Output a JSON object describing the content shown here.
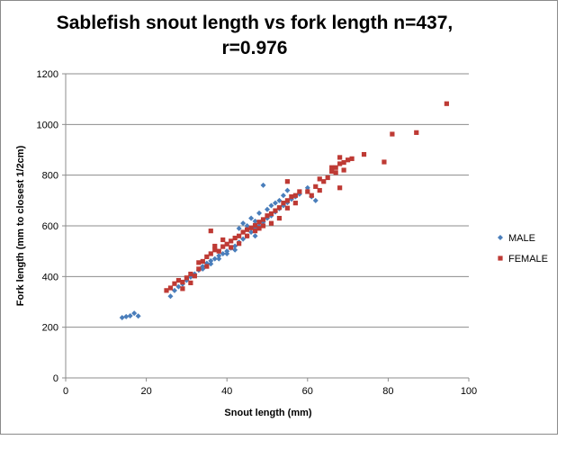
{
  "chart_data": {
    "type": "scatter",
    "title_line1": "Sablefish snout length vs fork length n=437,",
    "title_line2": "r=0.976",
    "xlabel": "Snout length (mm)",
    "ylabel": "Fork length  (mm to closest  1/2cm)",
    "xlim": [
      0,
      100
    ],
    "ylim": [
      0,
      1200
    ],
    "xticks": [
      "0",
      "20",
      "40",
      "60",
      "80",
      "100"
    ],
    "yticks": [
      "0",
      "200",
      "400",
      "600",
      "800",
      "1000",
      "1200"
    ],
    "grid": "horizontal",
    "legend_position": "right",
    "series": [
      {
        "name": "MALE",
        "color": "#4a7ebb",
        "marker": "diamond",
        "points": [
          [
            14,
            238
          ],
          [
            15,
            242
          ],
          [
            16,
            245
          ],
          [
            17,
            255
          ],
          [
            18,
            244
          ],
          [
            26,
            322
          ],
          [
            27,
            345
          ],
          [
            28,
            360
          ],
          [
            29,
            370
          ],
          [
            30,
            385
          ],
          [
            31,
            398
          ],
          [
            32,
            410
          ],
          [
            33,
            425
          ],
          [
            34,
            440
          ],
          [
            35,
            452
          ],
          [
            36,
            462
          ],
          [
            37,
            470
          ],
          [
            38,
            482
          ],
          [
            39,
            490
          ],
          [
            40,
            500
          ],
          [
            41,
            512
          ],
          [
            42,
            520
          ],
          [
            43,
            535
          ],
          [
            44,
            548
          ],
          [
            45,
            560
          ],
          [
            46,
            575
          ],
          [
            47,
            590
          ],
          [
            48,
            600
          ],
          [
            49,
            615
          ],
          [
            50,
            630
          ],
          [
            51,
            640
          ],
          [
            52,
            655
          ],
          [
            53,
            668
          ],
          [
            54,
            680
          ],
          [
            55,
            692
          ],
          [
            56,
            705
          ],
          [
            57,
            715
          ],
          [
            44,
            610
          ],
          [
            46,
            630
          ],
          [
            48,
            650
          ],
          [
            50,
            665
          ],
          [
            52,
            690
          ],
          [
            54,
            720
          ],
          [
            55,
            740
          ],
          [
            49,
            760
          ],
          [
            43,
            590
          ],
          [
            45,
            600
          ],
          [
            47,
            618
          ],
          [
            42,
            505
          ],
          [
            40,
            490
          ],
          [
            38,
            470
          ],
          [
            36,
            450
          ],
          [
            34,
            430
          ],
          [
            58,
            725
          ],
          [
            60,
            750
          ],
          [
            62,
            700
          ],
          [
            61,
            715
          ],
          [
            53,
            700
          ],
          [
            51,
            680
          ],
          [
            47,
            560
          ]
        ]
      },
      {
        "name": "FEMALE",
        "color": "#be3a34",
        "marker": "square",
        "points": [
          [
            25,
            345
          ],
          [
            26,
            355
          ],
          [
            27,
            372
          ],
          [
            28,
            385
          ],
          [
            29,
            378
          ],
          [
            30,
            395
          ],
          [
            31,
            410
          ],
          [
            32,
            402
          ],
          [
            33,
            430
          ],
          [
            34,
            460
          ],
          [
            35,
            478
          ],
          [
            36,
            490
          ],
          [
            37,
            505
          ],
          [
            38,
            500
          ],
          [
            39,
            518
          ],
          [
            40,
            528
          ],
          [
            41,
            540
          ],
          [
            42,
            552
          ],
          [
            43,
            560
          ],
          [
            44,
            575
          ],
          [
            45,
            585
          ],
          [
            46,
            592
          ],
          [
            47,
            602
          ],
          [
            48,
            615
          ],
          [
            49,
            625
          ],
          [
            50,
            640
          ],
          [
            51,
            648
          ],
          [
            52,
            660
          ],
          [
            53,
            672
          ],
          [
            54,
            690
          ],
          [
            55,
            700
          ],
          [
            56,
            715
          ],
          [
            57,
            720
          ],
          [
            58,
            735
          ],
          [
            36,
            580
          ],
          [
            29,
            352
          ],
          [
            31,
            375
          ],
          [
            33,
            455
          ],
          [
            35,
            440
          ],
          [
            37,
            520
          ],
          [
            39,
            545
          ],
          [
            41,
            515
          ],
          [
            43,
            530
          ],
          [
            45,
            560
          ],
          [
            47,
            580
          ],
          [
            49,
            600
          ],
          [
            51,
            610
          ],
          [
            53,
            630
          ],
          [
            55,
            670
          ],
          [
            57,
            690
          ],
          [
            61,
            720
          ],
          [
            63,
            740
          ],
          [
            64,
            775
          ],
          [
            65,
            790
          ],
          [
            66,
            815
          ],
          [
            67,
            830
          ],
          [
            68,
            845
          ],
          [
            69,
            820
          ],
          [
            68,
            870
          ],
          [
            70,
            860
          ],
          [
            63,
            785
          ],
          [
            67,
            810
          ],
          [
            68,
            750
          ],
          [
            74,
            882
          ],
          [
            79,
            852
          ],
          [
            81,
            962
          ],
          [
            87,
            968
          ],
          [
            94.5,
            1082
          ],
          [
            55,
            775
          ],
          [
            60,
            735
          ],
          [
            62,
            755
          ],
          [
            66,
            830
          ],
          [
            69,
            850
          ],
          [
            71,
            865
          ],
          [
            48,
            590
          ]
        ]
      }
    ]
  }
}
